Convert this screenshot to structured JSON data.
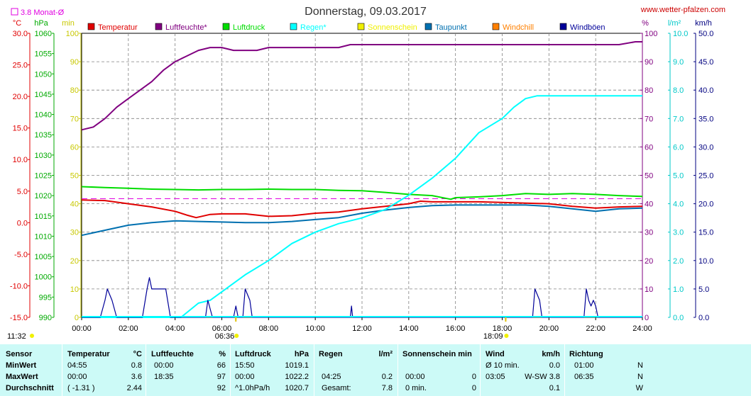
{
  "header": {
    "title": "Donnerstag, 09.03.2017",
    "website": "www.wetter-pfalzen.com",
    "monthly_avg_label": "3.8 Monat-Ø"
  },
  "colors": {
    "temperature": "#e00000",
    "humidity": "#800080",
    "pressure": "#00dd00",
    "rain": "#00ffff",
    "sunshine": "#f0f000",
    "dewpoint": "#0070b0",
    "windchill": "#ff8000",
    "gust": "#000099",
    "monthly_avg": "#e000e0",
    "grid": "#808080"
  },
  "chart_data": {
    "type": "line",
    "x_unit": "time",
    "x_ticks": [
      "00:00",
      "02:00",
      "04:00",
      "06:00",
      "08:00",
      "10:00",
      "12:00",
      "14:00",
      "16:00",
      "18:00",
      "20:00",
      "22:00",
      "24:00"
    ],
    "markers": {
      "left_time": "11:32",
      "sunrise": "06:36",
      "sunset": "18:09"
    },
    "legend": [
      {
        "key": "temperature",
        "label": "Temperatur"
      },
      {
        "key": "humidity",
        "label": "Luftfeuchte*"
      },
      {
        "key": "pressure",
        "label": "Luftdruck"
      },
      {
        "key": "rain",
        "label": "Regen*"
      },
      {
        "key": "sunshine",
        "label": "Sonnenschein"
      },
      {
        "key": "dewpoint",
        "label": "Taupunkt"
      },
      {
        "key": "windchill",
        "label": "Windchill"
      },
      {
        "key": "gust",
        "label": "Windböen"
      }
    ],
    "axes": {
      "temperature": {
        "unit": "°C",
        "ticks": [
          "30.0",
          "25.0",
          "20.0",
          "15.0",
          "10.0",
          "5.0",
          "0.0",
          "-5.0",
          "-10.0",
          "-15.0"
        ],
        "range": [
          -15,
          30
        ]
      },
      "pressure": {
        "unit": "hPa",
        "ticks": [
          "1060",
          "1055",
          "1050",
          "1045",
          "1040",
          "1035",
          "1030",
          "1025",
          "1020",
          "1015",
          "1010",
          "1005",
          "1000",
          "995",
          "990"
        ],
        "range": [
          990,
          1060
        ]
      },
      "sunshine": {
        "unit": "min",
        "ticks": [
          "100",
          "90",
          "80",
          "70",
          "60",
          "50",
          "40",
          "30",
          "20",
          "10",
          "0"
        ],
        "range": [
          0,
          100
        ]
      },
      "humidity": {
        "unit": "%",
        "ticks": [
          "100",
          "90",
          "80",
          "70",
          "60",
          "50",
          "40",
          "30",
          "20",
          "10",
          "0"
        ],
        "range": [
          0,
          100
        ]
      },
      "rain": {
        "unit": "l/m²",
        "ticks": [
          "10.0",
          "9.0",
          "8.0",
          "7.0",
          "6.0",
          "5.0",
          "4.0",
          "3.0",
          "2.0",
          "1.0",
          "0.0"
        ],
        "range": [
          0,
          10
        ]
      },
      "wind": {
        "unit": "km/h",
        "ticks": [
          "50.0",
          "45.0",
          "40.0",
          "35.0",
          "30.0",
          "25.0",
          "20.0",
          "15.0",
          "10.0",
          "5.0",
          "0.0"
        ],
        "range": [
          0,
          50
        ]
      }
    },
    "monthly_avg_temperature": 3.8,
    "series": [
      {
        "key": "humidity",
        "axis": "humidity",
        "points": [
          [
            0,
            66
          ],
          [
            0.5,
            67
          ],
          [
            1,
            70
          ],
          [
            1.5,
            74
          ],
          [
            2,
            77
          ],
          [
            2.5,
            80
          ],
          [
            3,
            83
          ],
          [
            3.5,
            87
          ],
          [
            4,
            90
          ],
          [
            4.5,
            92
          ],
          [
            5,
            94
          ],
          [
            5.5,
            95
          ],
          [
            6,
            95
          ],
          [
            6.5,
            94
          ],
          [
            7,
            94
          ],
          [
            7.5,
            94
          ],
          [
            8,
            95
          ],
          [
            9,
            95
          ],
          [
            10,
            95
          ],
          [
            11,
            95
          ],
          [
            11.5,
            96
          ],
          [
            12,
            96
          ],
          [
            13,
            96
          ],
          [
            14,
            96
          ],
          [
            15,
            96
          ],
          [
            16,
            96
          ],
          [
            17,
            96
          ],
          [
            18,
            96
          ],
          [
            19,
            96
          ],
          [
            20,
            96
          ],
          [
            21,
            96
          ],
          [
            22,
            96
          ],
          [
            23,
            96
          ],
          [
            23.7,
            97
          ],
          [
            24,
            97
          ]
        ]
      },
      {
        "key": "pressure",
        "axis": "pressure",
        "points": [
          [
            0,
            1022.2
          ],
          [
            1,
            1022
          ],
          [
            2,
            1021.8
          ],
          [
            3,
            1021.6
          ],
          [
            4,
            1021.5
          ],
          [
            5,
            1021.4
          ],
          [
            6,
            1021.5
          ],
          [
            7,
            1021.5
          ],
          [
            8,
            1021.6
          ],
          [
            9,
            1021.5
          ],
          [
            10,
            1021.5
          ],
          [
            11,
            1021.3
          ],
          [
            12,
            1021.2
          ],
          [
            13,
            1020.8
          ],
          [
            14,
            1020.3
          ],
          [
            15,
            1020.0
          ],
          [
            15.8,
            1019.1
          ],
          [
            16,
            1019.5
          ],
          [
            17,
            1019.7
          ],
          [
            18,
            1020.0
          ],
          [
            19,
            1020.5
          ],
          [
            20,
            1020.3
          ],
          [
            21,
            1020.5
          ],
          [
            22,
            1020.3
          ],
          [
            23,
            1020.0
          ],
          [
            24,
            1019.8
          ]
        ]
      },
      {
        "key": "temperature",
        "axis": "temperature",
        "points": [
          [
            0,
            3.6
          ],
          [
            1,
            3.5
          ],
          [
            2,
            3.0
          ],
          [
            3,
            2.5
          ],
          [
            4,
            1.8
          ],
          [
            4.5,
            1.2
          ],
          [
            4.9,
            0.8
          ],
          [
            5.5,
            1.3
          ],
          [
            6,
            1.4
          ],
          [
            7,
            1.4
          ],
          [
            8,
            1.0
          ],
          [
            9,
            1.1
          ],
          [
            10,
            1.5
          ],
          [
            11,
            1.7
          ],
          [
            12,
            2.2
          ],
          [
            13,
            2.6
          ],
          [
            14,
            3.0
          ],
          [
            14.5,
            3.4
          ],
          [
            15,
            3.3
          ],
          [
            16,
            3.3
          ],
          [
            17,
            3.3
          ],
          [
            18,
            3.2
          ],
          [
            19,
            3.1
          ],
          [
            20,
            3.0
          ],
          [
            21,
            2.6
          ],
          [
            22,
            2.3
          ],
          [
            23,
            2.5
          ],
          [
            24,
            2.6
          ]
        ]
      },
      {
        "key": "dewpoint",
        "axis": "temperature",
        "points": [
          [
            0,
            -2.0
          ],
          [
            1,
            -1.2
          ],
          [
            2,
            -0.4
          ],
          [
            3,
            0.0
          ],
          [
            4,
            0.3
          ],
          [
            5,
            0.2
          ],
          [
            6,
            0.1
          ],
          [
            7,
            0.0
          ],
          [
            8,
            0.0
          ],
          [
            9,
            0.2
          ],
          [
            10,
            0.5
          ],
          [
            11,
            0.8
          ],
          [
            12,
            1.5
          ],
          [
            13,
            2.0
          ],
          [
            14,
            2.4
          ],
          [
            15,
            2.7
          ],
          [
            16,
            2.8
          ],
          [
            17,
            2.8
          ],
          [
            18,
            2.8
          ],
          [
            19,
            2.8
          ],
          [
            20,
            2.6
          ],
          [
            21,
            2.2
          ],
          [
            22,
            1.8
          ],
          [
            23,
            2.2
          ],
          [
            24,
            2.3
          ]
        ]
      },
      {
        "key": "rain",
        "axis": "rain",
        "points": [
          [
            0,
            0
          ],
          [
            4.25,
            0
          ],
          [
            5,
            0.5
          ],
          [
            5.5,
            0.6
          ],
          [
            6,
            0.9
          ],
          [
            7,
            1.5
          ],
          [
            8,
            2.0
          ],
          [
            9,
            2.6
          ],
          [
            10,
            3.0
          ],
          [
            11,
            3.3
          ],
          [
            12,
            3.5
          ],
          [
            13,
            3.8
          ],
          [
            14,
            4.3
          ],
          [
            15,
            4.9
          ],
          [
            16,
            5.6
          ],
          [
            17,
            6.5
          ],
          [
            18,
            7.0
          ],
          [
            18.5,
            7.4
          ],
          [
            19,
            7.7
          ],
          [
            19.5,
            7.8
          ],
          [
            20,
            7.8
          ],
          [
            22,
            7.8
          ],
          [
            24,
            7.8
          ]
        ]
      },
      {
        "key": "gust",
        "axis": "wind",
        "points": [
          [
            0,
            0
          ],
          [
            0.8,
            0
          ],
          [
            1.0,
            3
          ],
          [
            1.1,
            5
          ],
          [
            1.3,
            3
          ],
          [
            1.5,
            0
          ],
          [
            2.6,
            0
          ],
          [
            2.8,
            5
          ],
          [
            2.9,
            7
          ],
          [
            3.0,
            5
          ],
          [
            3.2,
            5
          ],
          [
            3.6,
            5
          ],
          [
            3.8,
            0
          ],
          [
            5.3,
            0
          ],
          [
            5.4,
            3
          ],
          [
            5.6,
            0
          ],
          [
            6.5,
            0
          ],
          [
            6.6,
            2
          ],
          [
            6.7,
            0
          ],
          [
            6.9,
            0
          ],
          [
            7.0,
            5
          ],
          [
            7.2,
            3
          ],
          [
            7.3,
            0
          ],
          [
            11.5,
            0
          ],
          [
            11.55,
            2
          ],
          [
            11.6,
            0
          ],
          [
            19.3,
            0
          ],
          [
            19.4,
            5
          ],
          [
            19.6,
            3
          ],
          [
            19.7,
            0
          ],
          [
            21.5,
            0
          ],
          [
            21.6,
            5
          ],
          [
            21.7,
            3
          ],
          [
            21.8,
            2
          ],
          [
            21.9,
            3
          ],
          [
            22.0,
            2
          ],
          [
            22.1,
            0
          ],
          [
            24,
            0
          ]
        ]
      }
    ]
  },
  "stats": {
    "headers": [
      "Sensor",
      "Temperatur",
      "°C",
      "Luftfeuchte",
      "%",
      "Luftdruck",
      "hPa",
      "Regen",
      "l/m²",
      "Sonnenschein min",
      "Wind",
      "km/h",
      "Richtung"
    ],
    "row_labels": [
      "MinWert",
      "MaxWert",
      "Durchschnitt"
    ],
    "temperature": [
      [
        "04:55",
        "0.8"
      ],
      [
        "00:00",
        "3.6"
      ],
      [
        "( -1.31 )",
        "2.44"
      ]
    ],
    "humidity": [
      [
        "00:00",
        "66"
      ],
      [
        "18:35",
        "97"
      ],
      [
        "",
        "92"
      ]
    ],
    "pressure": [
      [
        "15:50",
        "1019.1"
      ],
      [
        "00:00",
        "1022.2"
      ],
      [
        "^1.0hPa/h",
        "1020.7"
      ]
    ],
    "rain": [
      [
        "",
        ""
      ],
      [
        "04:25",
        "0.2"
      ],
      [
        "Gesamt:",
        "7.8"
      ]
    ],
    "sunshine": [
      [
        "",
        ""
      ],
      [
        "00:00",
        "0"
      ],
      [
        "0 min.",
        "0"
      ]
    ],
    "wind": [
      [
        "Ø 10 min.",
        "0.0"
      ],
      [
        "03:05",
        "W-SW 3.8"
      ],
      [
        "",
        "0.1"
      ]
    ],
    "direction": [
      [
        "01:00",
        "N"
      ],
      [
        "06:35",
        "N"
      ],
      [
        "",
        "W"
      ]
    ]
  }
}
